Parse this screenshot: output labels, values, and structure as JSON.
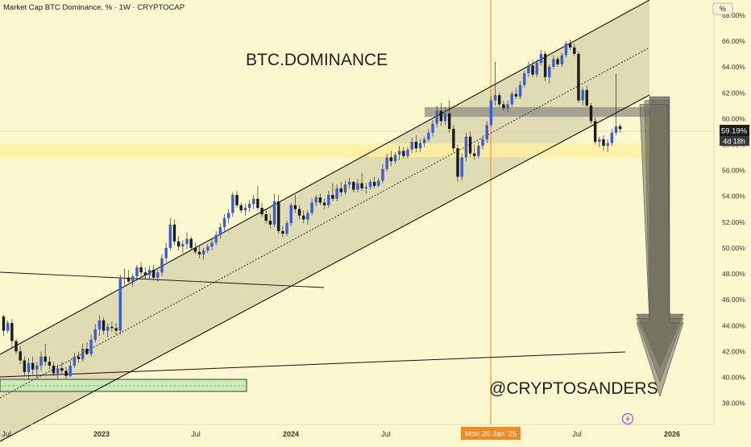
{
  "header": {
    "symbol_line": "Market Cap BTC Dominance, % · 1W · CRYPTOCAP",
    "unit_button": "%"
  },
  "overlay": {
    "title": "BTC.DOMINANCE",
    "watermark": "@CRYPTOSANDERS"
  },
  "price": {
    "last_value": "59.19%",
    "countdown": "4d 18h"
  },
  "crosshair": {
    "date_label": "Mon 20 Jan '25"
  },
  "colors": {
    "background": "#fbf7cf",
    "channel_fill": "#d6d2a8",
    "up_candle": "#3b5bdb",
    "down_candle": "#1a1a1a",
    "support_zone": "#fff0a0",
    "resistance_zone": "#8f8f86",
    "base_zone": "#c8eab5",
    "crosshair": "#f08a24",
    "arrow": "#6f6f5f"
  },
  "chart_data": {
    "type": "candlestick",
    "y_unit": "%",
    "ylim": [
      36.5,
      69
    ],
    "y_ticks": [
      "38.00%",
      "40.00%",
      "42.00%",
      "44.00%",
      "46.00%",
      "48.00%",
      "50.00%",
      "52.00%",
      "54.00%",
      "56.00%",
      "58.00%",
      "60.00%",
      "62.00%",
      "64.00%",
      "66.00%",
      "68.00%"
    ],
    "x_ticks": [
      "Jul",
      "2023",
      "Jul",
      "2024",
      "Jul",
      "Jul",
      "2026"
    ],
    "candles": [
      [
        44.7,
        44.8,
        43.2,
        43.6
      ],
      [
        43.6,
        44.4,
        43.4,
        44.2
      ],
      [
        44.2,
        44.5,
        42.3,
        42.8
      ],
      [
        42.8,
        43.0,
        41.8,
        42.0
      ],
      [
        42.0,
        42.4,
        41.0,
        41.3
      ],
      [
        41.3,
        41.6,
        40.1,
        40.4
      ],
      [
        40.4,
        41.5,
        39.8,
        41.1
      ],
      [
        41.1,
        41.6,
        40.2,
        40.6
      ],
      [
        40.6,
        41.2,
        39.9,
        40.9
      ],
      [
        40.9,
        42.0,
        40.5,
        41.6
      ],
      [
        41.6,
        42.6,
        40.9,
        41.2
      ],
      [
        41.2,
        41.6,
        40.6,
        40.9
      ],
      [
        40.9,
        41.2,
        40.1,
        40.3
      ],
      [
        40.3,
        41.0,
        39.9,
        40.7
      ],
      [
        40.7,
        41.2,
        40.2,
        40.5
      ],
      [
        40.5,
        40.8,
        39.9,
        40.1
      ],
      [
        40.1,
        41.3,
        40.0,
        40.9
      ],
      [
        40.9,
        41.9,
        40.7,
        41.6
      ],
      [
        41.6,
        42.0,
        41.1,
        41.4
      ],
      [
        41.4,
        42.6,
        41.2,
        42.2
      ],
      [
        42.2,
        42.7,
        41.7,
        41.8
      ],
      [
        41.8,
        43.3,
        41.6,
        42.9
      ],
      [
        42.9,
        44.1,
        42.7,
        43.7
      ],
      [
        43.7,
        44.8,
        43.2,
        44.4
      ],
      [
        44.4,
        44.6,
        43.3,
        43.6
      ],
      [
        43.6,
        44.2,
        43.1,
        43.9
      ],
      [
        43.9,
        44.3,
        43.5,
        43.8
      ],
      [
        43.8,
        44.2,
        43.3,
        43.6
      ],
      [
        43.6,
        47.9,
        43.3,
        47.6
      ],
      [
        47.6,
        48.4,
        47.1,
        47.7
      ],
      [
        47.7,
        48.3,
        47.3,
        47.4
      ],
      [
        47.4,
        48.0,
        47.0,
        47.8
      ],
      [
        47.8,
        48.7,
        47.5,
        48.5
      ],
      [
        48.5,
        48.9,
        47.8,
        48.1
      ],
      [
        48.1,
        48.5,
        47.6,
        47.9
      ],
      [
        47.9,
        48.6,
        47.6,
        48.3
      ],
      [
        48.3,
        48.7,
        47.5,
        47.7
      ],
      [
        47.7,
        48.3,
        47.4,
        48.1
      ],
      [
        48.1,
        49.5,
        47.8,
        49.2
      ],
      [
        49.2,
        50.4,
        48.9,
        50.0
      ],
      [
        50.0,
        52.3,
        49.8,
        51.8
      ],
      [
        51.8,
        52.2,
        50.2,
        50.5
      ],
      [
        50.5,
        50.9,
        49.8,
        50.1
      ],
      [
        50.1,
        50.6,
        49.6,
        50.3
      ],
      [
        50.3,
        51.2,
        49.9,
        50.7
      ],
      [
        50.7,
        50.9,
        49.8,
        50.0
      ],
      [
        50.0,
        50.4,
        49.5,
        49.7
      ],
      [
        49.7,
        50.1,
        49.2,
        49.5
      ],
      [
        49.5,
        50.0,
        49.1,
        49.8
      ],
      [
        49.8,
        50.3,
        49.6,
        50.1
      ],
      [
        50.1,
        50.7,
        49.8,
        50.4
      ],
      [
        50.4,
        51.3,
        50.2,
        51.0
      ],
      [
        51.0,
        51.9,
        50.7,
        51.6
      ],
      [
        51.6,
        52.6,
        51.3,
        52.3
      ],
      [
        52.3,
        53.0,
        51.9,
        52.7
      ],
      [
        52.7,
        54.3,
        52.4,
        54.1
      ],
      [
        54.1,
        54.4,
        53.1,
        53.3
      ],
      [
        53.3,
        53.5,
        52.7,
        52.9
      ],
      [
        52.9,
        53.4,
        52.5,
        53.1
      ],
      [
        53.1,
        53.7,
        52.8,
        53.4
      ],
      [
        53.4,
        54.1,
        53.0,
        53.8
      ],
      [
        53.8,
        54.8,
        52.9,
        53.1
      ],
      [
        53.1,
        53.5,
        52.4,
        52.6
      ],
      [
        52.6,
        53.0,
        51.9,
        52.1
      ],
      [
        52.1,
        52.6,
        51.5,
        51.8
      ],
      [
        51.8,
        54.2,
        51.6,
        53.6
      ],
      [
        53.6,
        54.1,
        51.1,
        51.3
      ],
      [
        51.3,
        51.7,
        50.8,
        51.1
      ],
      [
        51.1,
        52.1,
        50.9,
        51.9
      ],
      [
        51.9,
        53.5,
        51.7,
        53.3
      ],
      [
        53.3,
        54.1,
        52.7,
        53.0
      ],
      [
        53.0,
        53.3,
        52.2,
        52.5
      ],
      [
        52.5,
        52.9,
        51.9,
        52.2
      ],
      [
        52.2,
        52.9,
        51.8,
        52.7
      ],
      [
        52.7,
        53.8,
        52.5,
        53.5
      ],
      [
        53.5,
        54.1,
        53.2,
        53.9
      ],
      [
        53.9,
        54.2,
        53.3,
        53.5
      ],
      [
        53.5,
        53.8,
        53.0,
        53.3
      ],
      [
        53.3,
        54.4,
        53.1,
        54.1
      ],
      [
        54.1,
        55.0,
        53.6,
        53.8
      ],
      [
        53.8,
        54.9,
        53.6,
        54.6
      ],
      [
        54.6,
        55.1,
        54.0,
        54.3
      ],
      [
        54.3,
        55.2,
        54.1,
        54.9
      ],
      [
        54.9,
        55.4,
        54.6,
        55.1
      ],
      [
        55.1,
        55.2,
        54.3,
        54.5
      ],
      [
        54.5,
        55.3,
        54.3,
        55.0
      ],
      [
        55.0,
        55.8,
        54.4,
        54.6
      ],
      [
        54.6,
        55.0,
        54.2,
        54.7
      ],
      [
        54.7,
        55.3,
        54.5,
        55.1
      ],
      [
        55.1,
        55.5,
        54.6,
        54.8
      ],
      [
        54.8,
        55.4,
        54.7,
        55.2
      ],
      [
        55.2,
        56.5,
        55.0,
        56.1
      ],
      [
        56.1,
        57.3,
        55.9,
        57.0
      ],
      [
        57.0,
        57.5,
        56.3,
        56.7
      ],
      [
        56.7,
        57.4,
        56.5,
        57.2
      ],
      [
        57.2,
        57.9,
        56.8,
        57.5
      ],
      [
        57.5,
        57.8,
        56.9,
        57.1
      ],
      [
        57.1,
        57.8,
        56.9,
        57.6
      ],
      [
        57.6,
        58.5,
        57.3,
        58.2
      ],
      [
        58.2,
        58.7,
        57.4,
        57.7
      ],
      [
        57.7,
        58.4,
        57.4,
        58.1
      ],
      [
        58.1,
        58.6,
        57.8,
        58.4
      ],
      [
        58.4,
        59.2,
        58.2,
        58.9
      ],
      [
        58.9,
        59.9,
        58.6,
        59.6
      ],
      [
        59.6,
        61.0,
        59.3,
        60.6
      ],
      [
        60.6,
        61.2,
        59.4,
        59.8
      ],
      [
        59.8,
        60.9,
        59.5,
        60.4
      ],
      [
        60.4,
        61.4,
        58.9,
        59.2
      ],
      [
        59.2,
        59.5,
        57.4,
        57.7
      ],
      [
        57.7,
        58.0,
        55.1,
        55.5
      ],
      [
        55.5,
        57.3,
        55.2,
        57.0
      ],
      [
        57.0,
        58.9,
        56.7,
        58.6
      ],
      [
        58.6,
        59.0,
        57.0,
        57.3
      ],
      [
        57.3,
        58.0,
        56.8,
        57.1
      ],
      [
        57.1,
        58.2,
        56.9,
        57.9
      ],
      [
        57.9,
        58.7,
        57.6,
        58.4
      ],
      [
        58.4,
        59.8,
        58.1,
        59.5
      ],
      [
        59.5,
        61.7,
        59.3,
        61.4
      ],
      [
        61.4,
        64.4,
        61.0,
        61.8
      ],
      [
        61.8,
        62.0,
        60.9,
        61.1
      ],
      [
        61.1,
        61.4,
        60.6,
        60.8
      ],
      [
        60.8,
        61.4,
        60.5,
        61.1
      ],
      [
        61.1,
        62.1,
        60.9,
        61.9
      ],
      [
        61.9,
        62.4,
        61.5,
        61.7
      ],
      [
        61.7,
        62.9,
        61.5,
        62.6
      ],
      [
        62.6,
        63.7,
        62.4,
        63.5
      ],
      [
        63.5,
        64.4,
        63.2,
        64.1
      ],
      [
        64.1,
        64.5,
        63.2,
        63.4
      ],
      [
        63.4,
        64.6,
        63.2,
        64.3
      ],
      [
        64.3,
        65.3,
        64.1,
        65.0
      ],
      [
        65.0,
        65.2,
        62.9,
        63.2
      ],
      [
        63.2,
        64.2,
        62.7,
        64.0
      ],
      [
        64.0,
        64.9,
        63.8,
        64.6
      ],
      [
        64.6,
        64.8,
        64.0,
        64.2
      ],
      [
        64.2,
        65.1,
        64.0,
        64.9
      ],
      [
        64.9,
        66.0,
        64.7,
        65.8
      ],
      [
        65.8,
        66.1,
        65.3,
        65.5
      ],
      [
        65.5,
        65.8,
        64.8,
        65.0
      ],
      [
        65.0,
        65.2,
        61.2,
        61.4
      ],
      [
        61.4,
        62.4,
        61.0,
        62.2
      ],
      [
        62.2,
        62.5,
        60.9,
        61.0
      ],
      [
        61.0,
        61.2,
        59.6,
        59.8
      ],
      [
        59.8,
        60.1,
        58.0,
        58.2
      ],
      [
        58.2,
        58.6,
        57.8,
        58.4
      ],
      [
        58.4,
        58.7,
        57.5,
        57.9
      ],
      [
        57.9,
        58.4,
        57.4,
        58.1
      ],
      [
        58.1,
        59.2,
        57.9,
        58.9
      ],
      [
        58.9,
        63.5,
        58.7,
        59.4
      ],
      [
        59.4,
        59.6,
        58.9,
        59.19
      ]
    ]
  }
}
